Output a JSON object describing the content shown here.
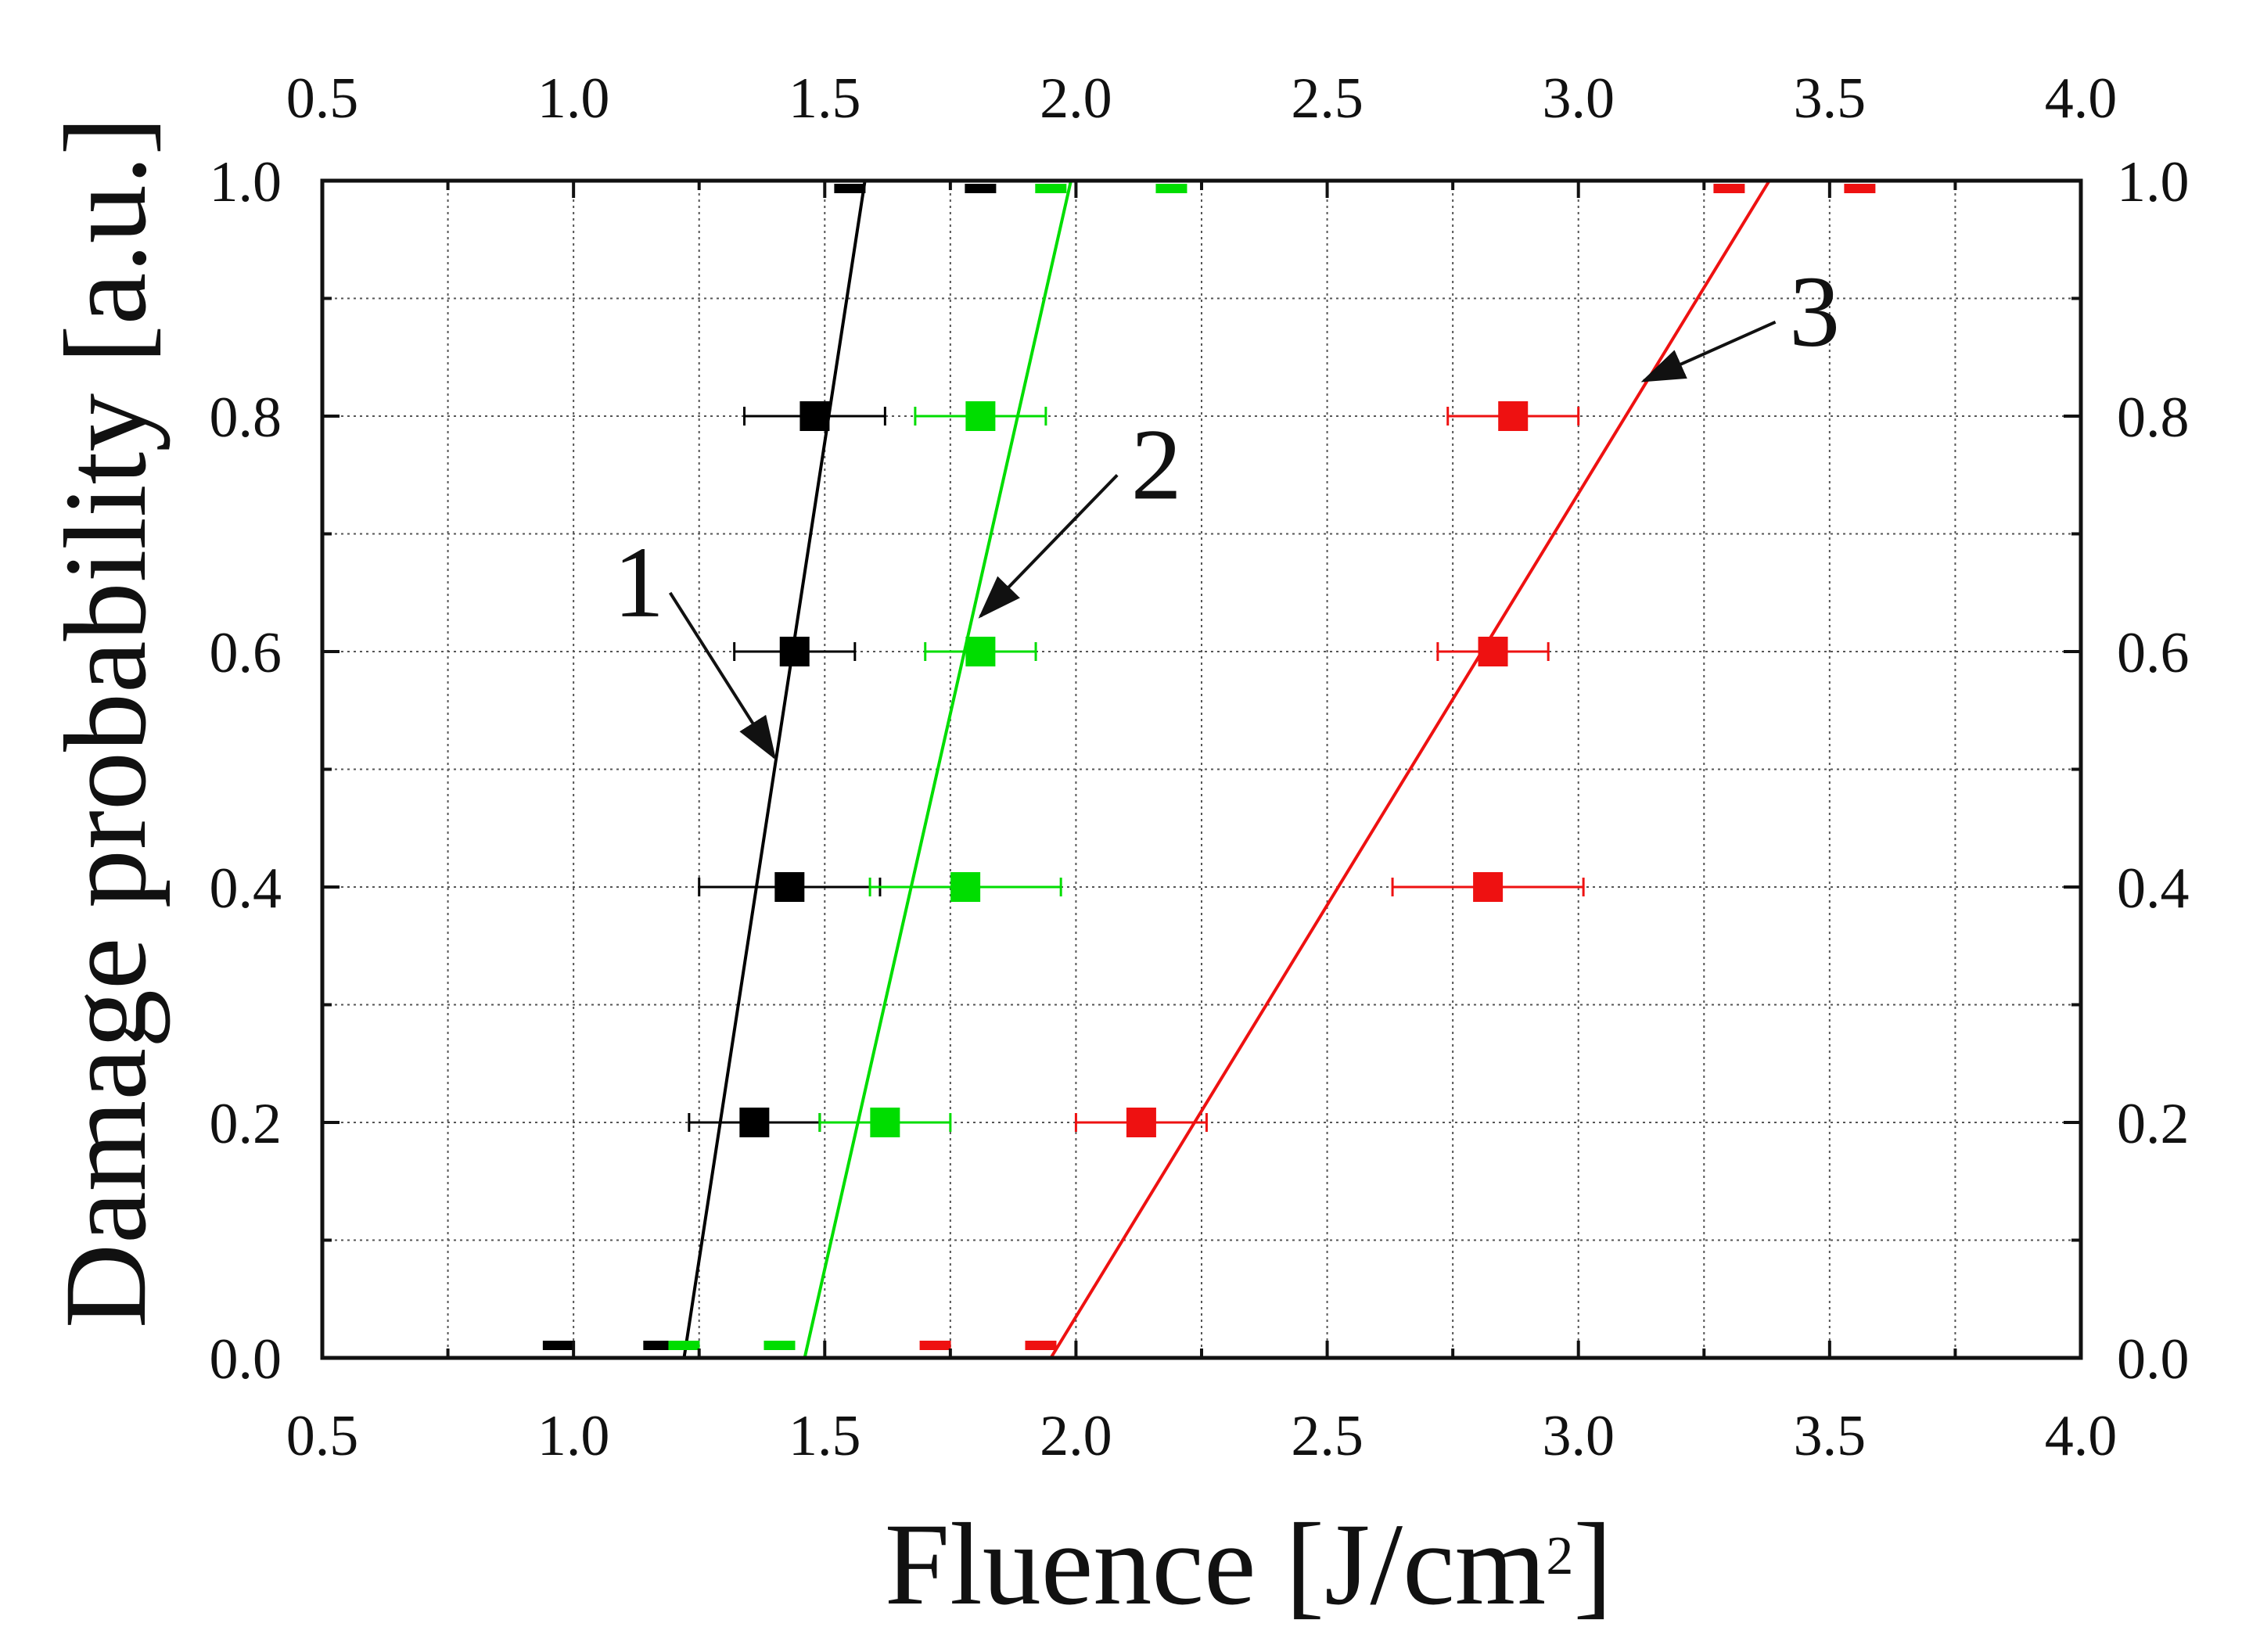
{
  "chart_data": {
    "type": "scatter",
    "title": "",
    "xlabel": "Fluence [J/cm",
    "xlabel_superscript": "2",
    "xlabel_close": "]",
    "ylabel": "Damage probability [a.u.]",
    "xlim": [
      0.5,
      4.0
    ],
    "ylim": [
      0.0,
      1.0
    ],
    "xticks": [
      "0.5",
      "1.0",
      "1.5",
      "2.0",
      "2.5",
      "3.0",
      "3.5",
      "4.0"
    ],
    "yticks": [
      "0.0",
      "0.2",
      "0.4",
      "0.6",
      "0.8",
      "1.0"
    ],
    "x_minor_step": 0.25,
    "y_minor_step": 0.1,
    "grid": true,
    "series": [
      {
        "color": "#000000",
        "points": [
          {
            "x": 0.97,
            "y": 0.0,
            "xerr": 0.0,
            "marker": "dash"
          },
          {
            "x": 1.17,
            "y": 0.0,
            "xerr": 0.0,
            "marker": "dash"
          },
          {
            "x": 1.36,
            "y": 0.2,
            "xerr": 0.13,
            "marker": "square"
          },
          {
            "x": 1.43,
            "y": 0.4,
            "xerr": 0.18,
            "marker": "square"
          },
          {
            "x": 1.44,
            "y": 0.6,
            "xerr": 0.12,
            "marker": "square"
          },
          {
            "x": 1.48,
            "y": 0.8,
            "xerr": 0.14,
            "marker": "square"
          },
          {
            "x": 1.55,
            "y": 1.0,
            "xerr": 0.0,
            "marker": "dash"
          },
          {
            "x": 1.81,
            "y": 1.0,
            "xerr": 0.0,
            "marker": "dash"
          }
        ],
        "fit": {
          "x0": 1.22,
          "y0": 0.0,
          "x1": 1.58,
          "y1": 1.0
        }
      },
      {
        "color": "#00dd00",
        "points": [
          {
            "x": 1.22,
            "y": 0.0,
            "xerr": 0.0,
            "marker": "dash"
          },
          {
            "x": 1.41,
            "y": 0.0,
            "xerr": 0.0,
            "marker": "dash"
          },
          {
            "x": 1.62,
            "y": 0.2,
            "xerr": 0.13,
            "marker": "square"
          },
          {
            "x": 1.78,
            "y": 0.4,
            "xerr": 0.19,
            "marker": "square"
          },
          {
            "x": 1.81,
            "y": 0.6,
            "xerr": 0.11,
            "marker": "square"
          },
          {
            "x": 1.81,
            "y": 0.8,
            "xerr": 0.13,
            "marker": "square"
          },
          {
            "x": 1.95,
            "y": 1.0,
            "xerr": 0.0,
            "marker": "dash"
          },
          {
            "x": 2.19,
            "y": 1.0,
            "xerr": 0.0,
            "marker": "dash"
          }
        ],
        "fit": {
          "x0": 1.46,
          "y0": 0.0,
          "x1": 1.99,
          "y1": 1.0
        }
      },
      {
        "color": "#ee1111",
        "points": [
          {
            "x": 1.72,
            "y": 0.0,
            "xerr": 0.0,
            "marker": "dash"
          },
          {
            "x": 1.93,
            "y": 0.0,
            "xerr": 0.0,
            "marker": "dash"
          },
          {
            "x": 2.13,
            "y": 0.2,
            "xerr": 0.13,
            "marker": "square"
          },
          {
            "x": 2.82,
            "y": 0.4,
            "xerr": 0.19,
            "marker": "square"
          },
          {
            "x": 2.83,
            "y": 0.6,
            "xerr": 0.11,
            "marker": "square"
          },
          {
            "x": 2.87,
            "y": 0.8,
            "xerr": 0.13,
            "marker": "square"
          },
          {
            "x": 3.3,
            "y": 1.0,
            "xerr": 0.0,
            "marker": "dash"
          },
          {
            "x": 3.56,
            "y": 1.0,
            "xerr": 0.0,
            "marker": "dash"
          }
        ],
        "fit": {
          "x0": 1.95,
          "y0": 0.0,
          "x1": 3.38,
          "y1": 1.0
        }
      }
    ],
    "annotations": [
      {
        "text": "1",
        "text_x": 1.13,
        "text_y": 0.63,
        "arrow_to_x": 1.4,
        "arrow_to_y": 0.51
      },
      {
        "text": "2",
        "text_x": 2.16,
        "text_y": 0.73,
        "arrow_to_x": 1.81,
        "arrow_to_y": 0.63
      },
      {
        "text": "3",
        "text_x": 3.47,
        "text_y": 0.86,
        "arrow_to_x": 3.13,
        "arrow_to_y": 0.83
      }
    ]
  }
}
